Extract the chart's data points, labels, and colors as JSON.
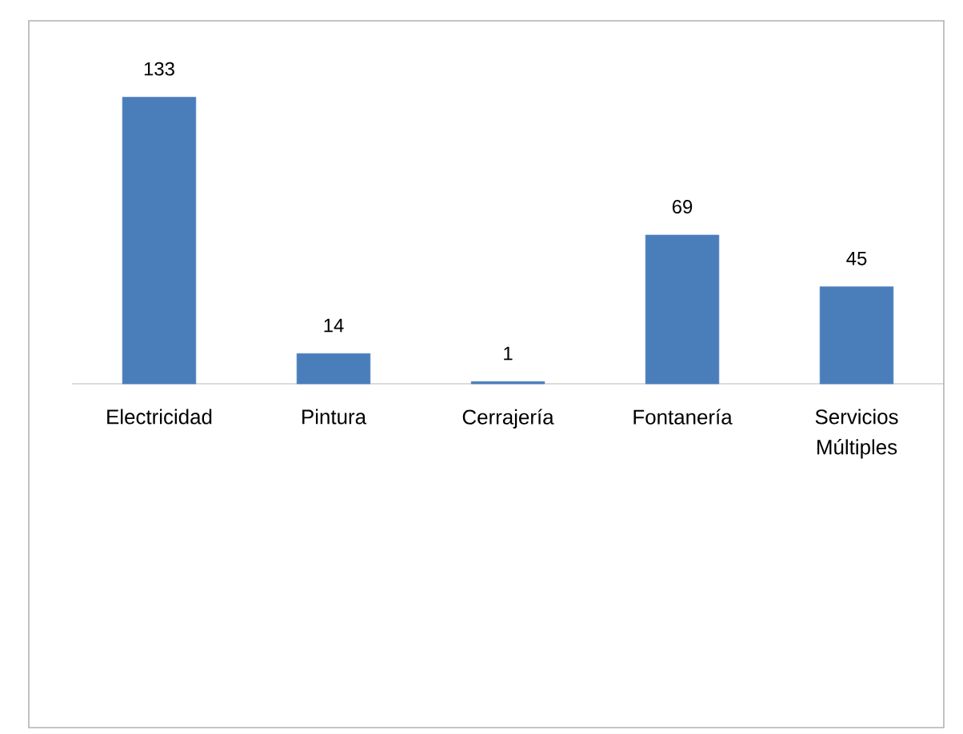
{
  "chart_data": {
    "type": "bar",
    "categories": [
      "Electricidad",
      "Pintura",
      "Cerrajería",
      "Fontanería",
      "Servicios Múltiples"
    ],
    "values": [
      133,
      14,
      1,
      69,
      45
    ],
    "color": "#4a7ebb",
    "data_labels": true
  }
}
